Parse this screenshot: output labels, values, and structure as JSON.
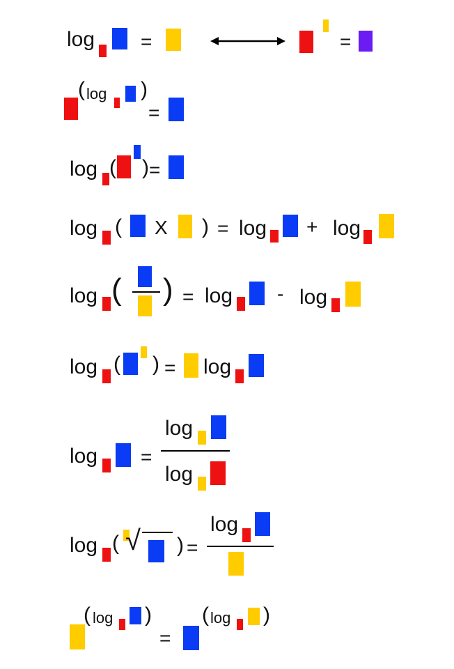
{
  "colors": {
    "red": "#ee1111",
    "blue": "#0a3bf5",
    "yellow": "#ffcc00",
    "purple": "#6a1cf2",
    "ink": "#111111"
  },
  "symbols": {
    "log": "log",
    "eq": "=",
    "plus": "+",
    "minus": "-",
    "times": "X",
    "lparen": "(",
    "rparen": ")",
    "root": "√",
    "arrow": "↔"
  },
  "rules": [
    {
      "id": "definition",
      "blocks": [
        "red-base",
        "blue-argument",
        "yellow-result",
        "red-base",
        "yellow-exponent",
        "purple-value"
      ]
    },
    {
      "id": "inverse-power",
      "blocks": [
        "red-base",
        "red-base",
        "blue-argument",
        "blue-argument"
      ]
    },
    {
      "id": "inverse-log",
      "blocks": [
        "red-base",
        "red-base",
        "blue-exponent",
        "blue-result"
      ]
    },
    {
      "id": "product-rule",
      "blocks": [
        "red-base",
        "blue",
        "yellow",
        "red-base",
        "blue",
        "red-base",
        "yellow"
      ]
    },
    {
      "id": "quotient-rule",
      "blocks": [
        "red-base",
        "blue-numerator",
        "yellow-denominator",
        "red-base",
        "blue",
        "red-base",
        "yellow"
      ]
    },
    {
      "id": "power-rule",
      "blocks": [
        "red-base",
        "blue",
        "yellow-exponent",
        "yellow-coefficient",
        "red-base",
        "blue"
      ]
    },
    {
      "id": "change-of-base",
      "blocks": [
        "red-base",
        "blue",
        "yellow-base",
        "blue",
        "yellow-base",
        "red"
      ]
    },
    {
      "id": "root-rule",
      "blocks": [
        "red-base",
        "yellow-index",
        "blue-radicand",
        "red-base",
        "blue",
        "yellow-denominator"
      ]
    },
    {
      "id": "exponent-swap",
      "blocks": [
        "yellow",
        "red-base",
        "blue",
        "blue",
        "red-base",
        "yellow"
      ]
    }
  ]
}
